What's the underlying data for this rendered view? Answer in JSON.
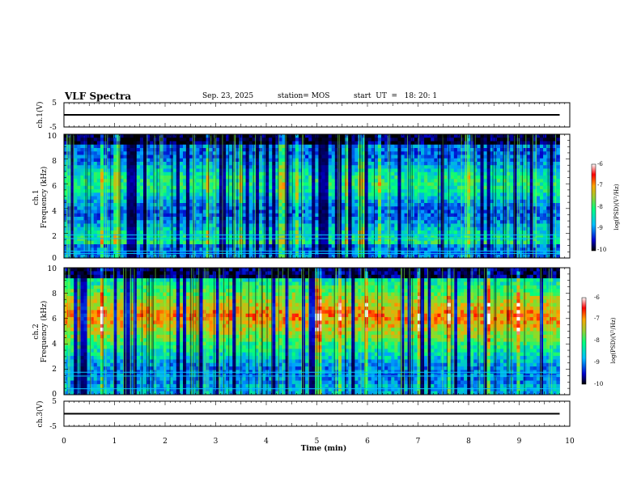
{
  "header": {
    "title": "VLF Spectra",
    "date": "Sep. 23, 2025",
    "station": "station= MOS",
    "start": "start  UT  =   18: 20: 1"
  },
  "colors": {
    "spectrum": [
      "#000000",
      "#00008b",
      "#0000ff",
      "#00bfff",
      "#00ff7f",
      "#7fff00",
      "#ffd700",
      "#ff7f00",
      "#ff0000",
      "#ffffff"
    ],
    "trace": "#000000"
  },
  "chart_data": [
    {
      "type": "line",
      "name": "ch1-trace",
      "ylabel": "ch.1(V)",
      "ylim": [
        -5,
        5
      ],
      "y_ticks": [
        "5",
        "-5"
      ],
      "xlim": [
        0,
        10
      ],
      "y": [
        0.0
      ]
    },
    {
      "type": "heatmap",
      "name": "ch1-spectrogram",
      "ylabel_lines": [
        "ch.1",
        "Frequency (kHz)"
      ],
      "ylim": [
        0,
        10
      ],
      "y_ticks": [
        "0",
        "2",
        "4",
        "6",
        "8",
        "10"
      ],
      "xlim": [
        0,
        10
      ],
      "data_until_min": 9.8,
      "band_kHz": [
        2,
        9
      ],
      "lines_kHz": [
        0.4,
        0.6,
        1.6,
        1.9
      ],
      "colorbar": {
        "label": "log(PSD)(V²/Hz)",
        "ticks": [
          "-6",
          "-7",
          "-8",
          "-9",
          "-10"
        ],
        "range": [
          -10,
          -6
        ]
      }
    },
    {
      "type": "heatmap",
      "name": "ch2-spectrogram",
      "ylabel_lines": [
        "ch.2",
        "Frequency (kHz)"
      ],
      "ylim": [
        0,
        10
      ],
      "y_ticks": [
        "0",
        "2",
        "4",
        "6",
        "8",
        "10"
      ],
      "xlim": [
        0,
        10
      ],
      "data_until_min": 9.8,
      "band_kHz": [
        1,
        9
      ],
      "lines_kHz": [
        0.5,
        1.5,
        1.8
      ],
      "colorbar": {
        "label": "log(PSD)(V²/Hz)",
        "ticks": [
          "-6",
          "-7",
          "-8",
          "-9",
          "-10"
        ],
        "range": [
          -10,
          -6
        ]
      }
    },
    {
      "type": "line",
      "name": "ch3-trace",
      "ylabel": "ch.3(V)",
      "ylim": [
        -5,
        5
      ],
      "y_ticks": [
        "5",
        "-5"
      ],
      "xlim": [
        0,
        10
      ],
      "y": [
        0.0
      ]
    }
  ],
  "x_axis": {
    "label": "Time (min)",
    "ticks": [
      "0",
      "1",
      "2",
      "3",
      "4",
      "5",
      "6",
      "7",
      "8",
      "9",
      "10"
    ]
  }
}
